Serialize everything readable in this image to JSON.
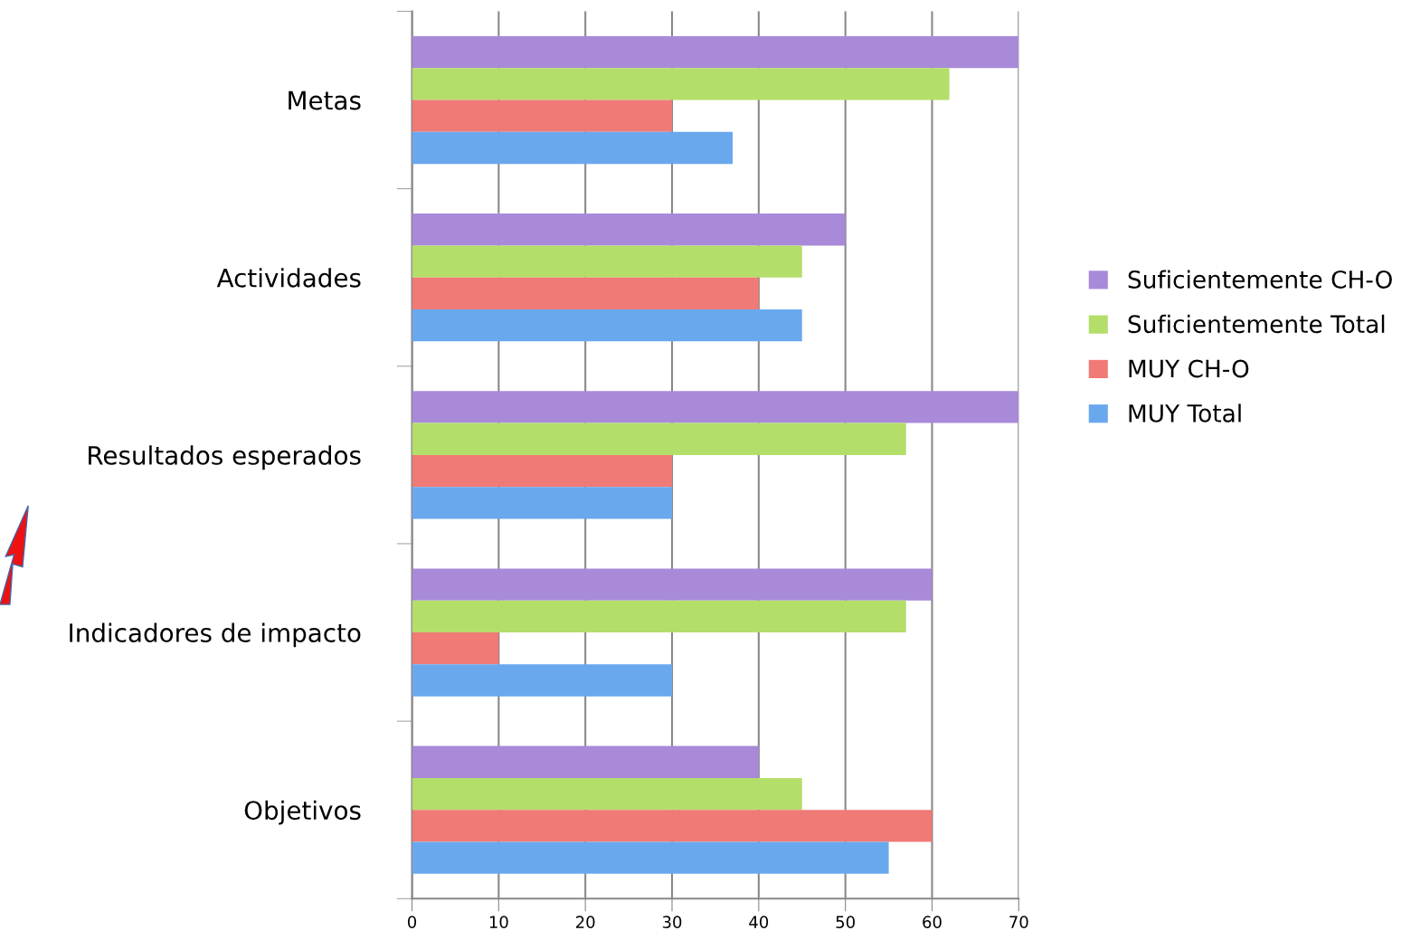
{
  "chart_data": {
    "type": "bar",
    "orientation": "horizontal",
    "categories": [
      "Metas",
      "Actividades",
      "Resultados esperados",
      "Indicadores de impacto",
      "Objetivos"
    ],
    "series": [
      {
        "name": "Suficientemente CH-O",
        "color": "#a88ad8",
        "values": [
          70,
          50,
          70,
          60,
          40
        ]
      },
      {
        "name": "Suficientemente Total",
        "color": "#b4de6a",
        "values": [
          62,
          45,
          57,
          57,
          45
        ]
      },
      {
        "name": "MUY CH-O",
        "color": "#f07a76",
        "values": [
          30,
          40,
          30,
          10,
          60
        ]
      },
      {
        "name": "MUY Total",
        "color": "#6aa8ee",
        "values": [
          37,
          45,
          30,
          30,
          55
        ]
      }
    ],
    "xlim": [
      0,
      70
    ],
    "xticks": [
      0,
      10,
      20,
      30,
      40,
      50,
      60,
      70
    ],
    "grid": "x",
    "legend": "right"
  }
}
